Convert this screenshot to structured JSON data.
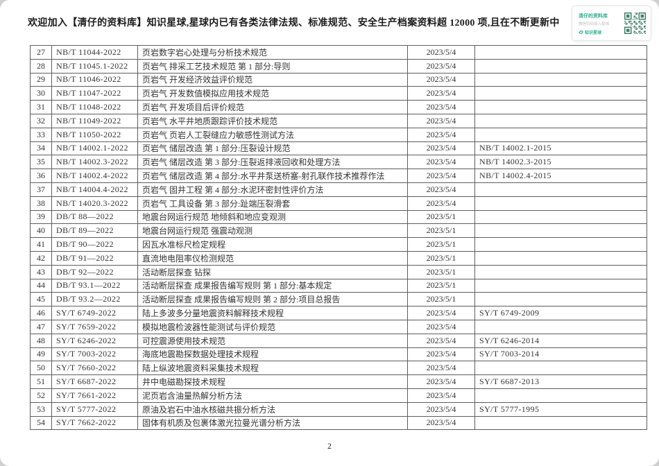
{
  "notice": "欢迎加入【清仔的资料库】知识星球,星球内已有各类法律法规、标准规范、安全生产档案资料超 12000 项,且在不断更新中",
  "promo_card": {
    "title": "清仔的资料库",
    "subtitle": "微信扫码加入星球",
    "logo_label": "知识星球",
    "accent_color": "#2fae8c",
    "qr_color": "#3f7f68"
  },
  "table": {
    "rows": [
      {
        "no": "27",
        "code": "NB/T 11044-2022",
        "title": "页岩数字岩心处理与分析技术规范",
        "date": "2023/5/4",
        "replaces": ""
      },
      {
        "no": "28",
        "code": "NB/T 11045.1-2022",
        "title": "页岩气 排采工艺技术规范 第 1 部分:导则",
        "date": "2023/5/4",
        "replaces": ""
      },
      {
        "no": "29",
        "code": "NB/T 11046-2022",
        "title": "页岩气 开发经济效益评价规范",
        "date": "2023/5/4",
        "replaces": ""
      },
      {
        "no": "30",
        "code": "NB/T 11047-2022",
        "title": "页岩气 开发数值模拟应用技术规范",
        "date": "2023/5/4",
        "replaces": ""
      },
      {
        "no": "31",
        "code": "NB/T 11048-2022",
        "title": "页岩气 开发项目后评价规范",
        "date": "2023/5/4",
        "replaces": ""
      },
      {
        "no": "32",
        "code": "NB/T 11049-2022",
        "title": "页岩气 水平井地质跟踪评价技术规范",
        "date": "2023/5/4",
        "replaces": ""
      },
      {
        "no": "33",
        "code": "NB/T 11050-2022",
        "title": "页岩气 页岩人工裂缝应力敏感性测试方法",
        "date": "2023/5/4",
        "replaces": ""
      },
      {
        "no": "34",
        "code": "NB/T 14002.1-2022",
        "title": "页岩气 储层改造 第 1 部分:压裂设计规范",
        "date": "2023/5/4",
        "replaces": "NB/T 14002.1-2015"
      },
      {
        "no": "35",
        "code": "NB/T 14002.3-2022",
        "title": "页岩气 储层改造 第 3 部分:压裂返排液回收和处理方法",
        "date": "2023/5/4",
        "replaces": "NB/T 14002.3-2015"
      },
      {
        "no": "36",
        "code": "NB/T 14002.4-2022",
        "title": "页岩气 储层改造 第 4 部分:水平井泵送桥塞-射孔联作技术推荐作法",
        "date": "2023/5/4",
        "replaces": "NB/T 14002.4-2015"
      },
      {
        "no": "37",
        "code": "NB/T 14004.4-2022",
        "title": "页岩气 固井工程 第 4 部分:水泥环密封性评价方法",
        "date": "2023/5/4",
        "replaces": ""
      },
      {
        "no": "38",
        "code": "NB/T 14020.3-2022",
        "title": "页岩气 工具设备 第 3 部分:趾端压裂滑套",
        "date": "2023/5/4",
        "replaces": ""
      },
      {
        "no": "39",
        "code": "DB/T 88—2022",
        "title": "地震台网运行规范 地倾斜和地应变观测",
        "date": "2023/5/1",
        "replaces": ""
      },
      {
        "no": "40",
        "code": "DB/T 89—2022",
        "title": "地震台网运行规范 强震动观测",
        "date": "2023/5/1",
        "replaces": ""
      },
      {
        "no": "41",
        "code": "DB/T 90—2022",
        "title": "因瓦水准标尺检定规程",
        "date": "2023/5/1",
        "replaces": ""
      },
      {
        "no": "42",
        "code": "DB/T 91—2022",
        "title": "直流地电阻率仪检测规范",
        "date": "2023/5/1",
        "replaces": ""
      },
      {
        "no": "43",
        "code": "DB/T 92—2022",
        "title": "活动断层探查 钻探",
        "date": "2023/5/1",
        "replaces": ""
      },
      {
        "no": "44",
        "code": "DB/T 93.1—2022",
        "title": "活动断层探查 成果报告编写规则 第 1 部分:基本规定",
        "date": "2023/5/1",
        "replaces": ""
      },
      {
        "no": "45",
        "code": "DB/T 93.2—2022",
        "title": "活动断层探查 成果报告编写规则 第 2 部分:项目总报告",
        "date": "2023/5/1",
        "replaces": ""
      },
      {
        "no": "46",
        "code": "SY/T 6749-2022",
        "title": "陆上多波多分量地震资料解释技术规程",
        "date": "2023/5/4",
        "replaces": "SY/T 6749-2009"
      },
      {
        "no": "47",
        "code": "SY/T 7659-2022",
        "title": "模拟地震检波器性能测试与评价规范",
        "date": "2023/5/4",
        "replaces": ""
      },
      {
        "no": "48",
        "code": "SY/T 6246-2022",
        "title": "可控震源使用技术规范",
        "date": "2023/5/4",
        "replaces": "SY/T 6246-2014"
      },
      {
        "no": "49",
        "code": "SY/T 7003-2022",
        "title": "海底地震勘探数据处理技术规程",
        "date": "2023/5/4",
        "replaces": "SY/T 7003-2014"
      },
      {
        "no": "50",
        "code": "SY/T 7660-2022",
        "title": "陆上纵波地震资料采集技术规程",
        "date": "2023/5/4",
        "replaces": ""
      },
      {
        "no": "51",
        "code": "SY/T 6687-2022",
        "title": "井中电磁勘探技术规程",
        "date": "2023/5/4",
        "replaces": "SY/T 6687-2013"
      },
      {
        "no": "52",
        "code": "SY/T 7661-2022",
        "title": "泥页岩含油量热解分析方法",
        "date": "2023/5/4",
        "replaces": ""
      },
      {
        "no": "53",
        "code": "SY/T 5777-2022",
        "title": "原油及岩石中油水核磁共振分析方法",
        "date": "2023/5/4",
        "replaces": "SY/T 5777-1995"
      },
      {
        "no": "54",
        "code": "SY/T 7662-2022",
        "title": "固体有机质及包裹体激光拉曼光谱分析方法",
        "date": "2023/5/4",
        "replaces": ""
      }
    ]
  },
  "page_number": "2"
}
